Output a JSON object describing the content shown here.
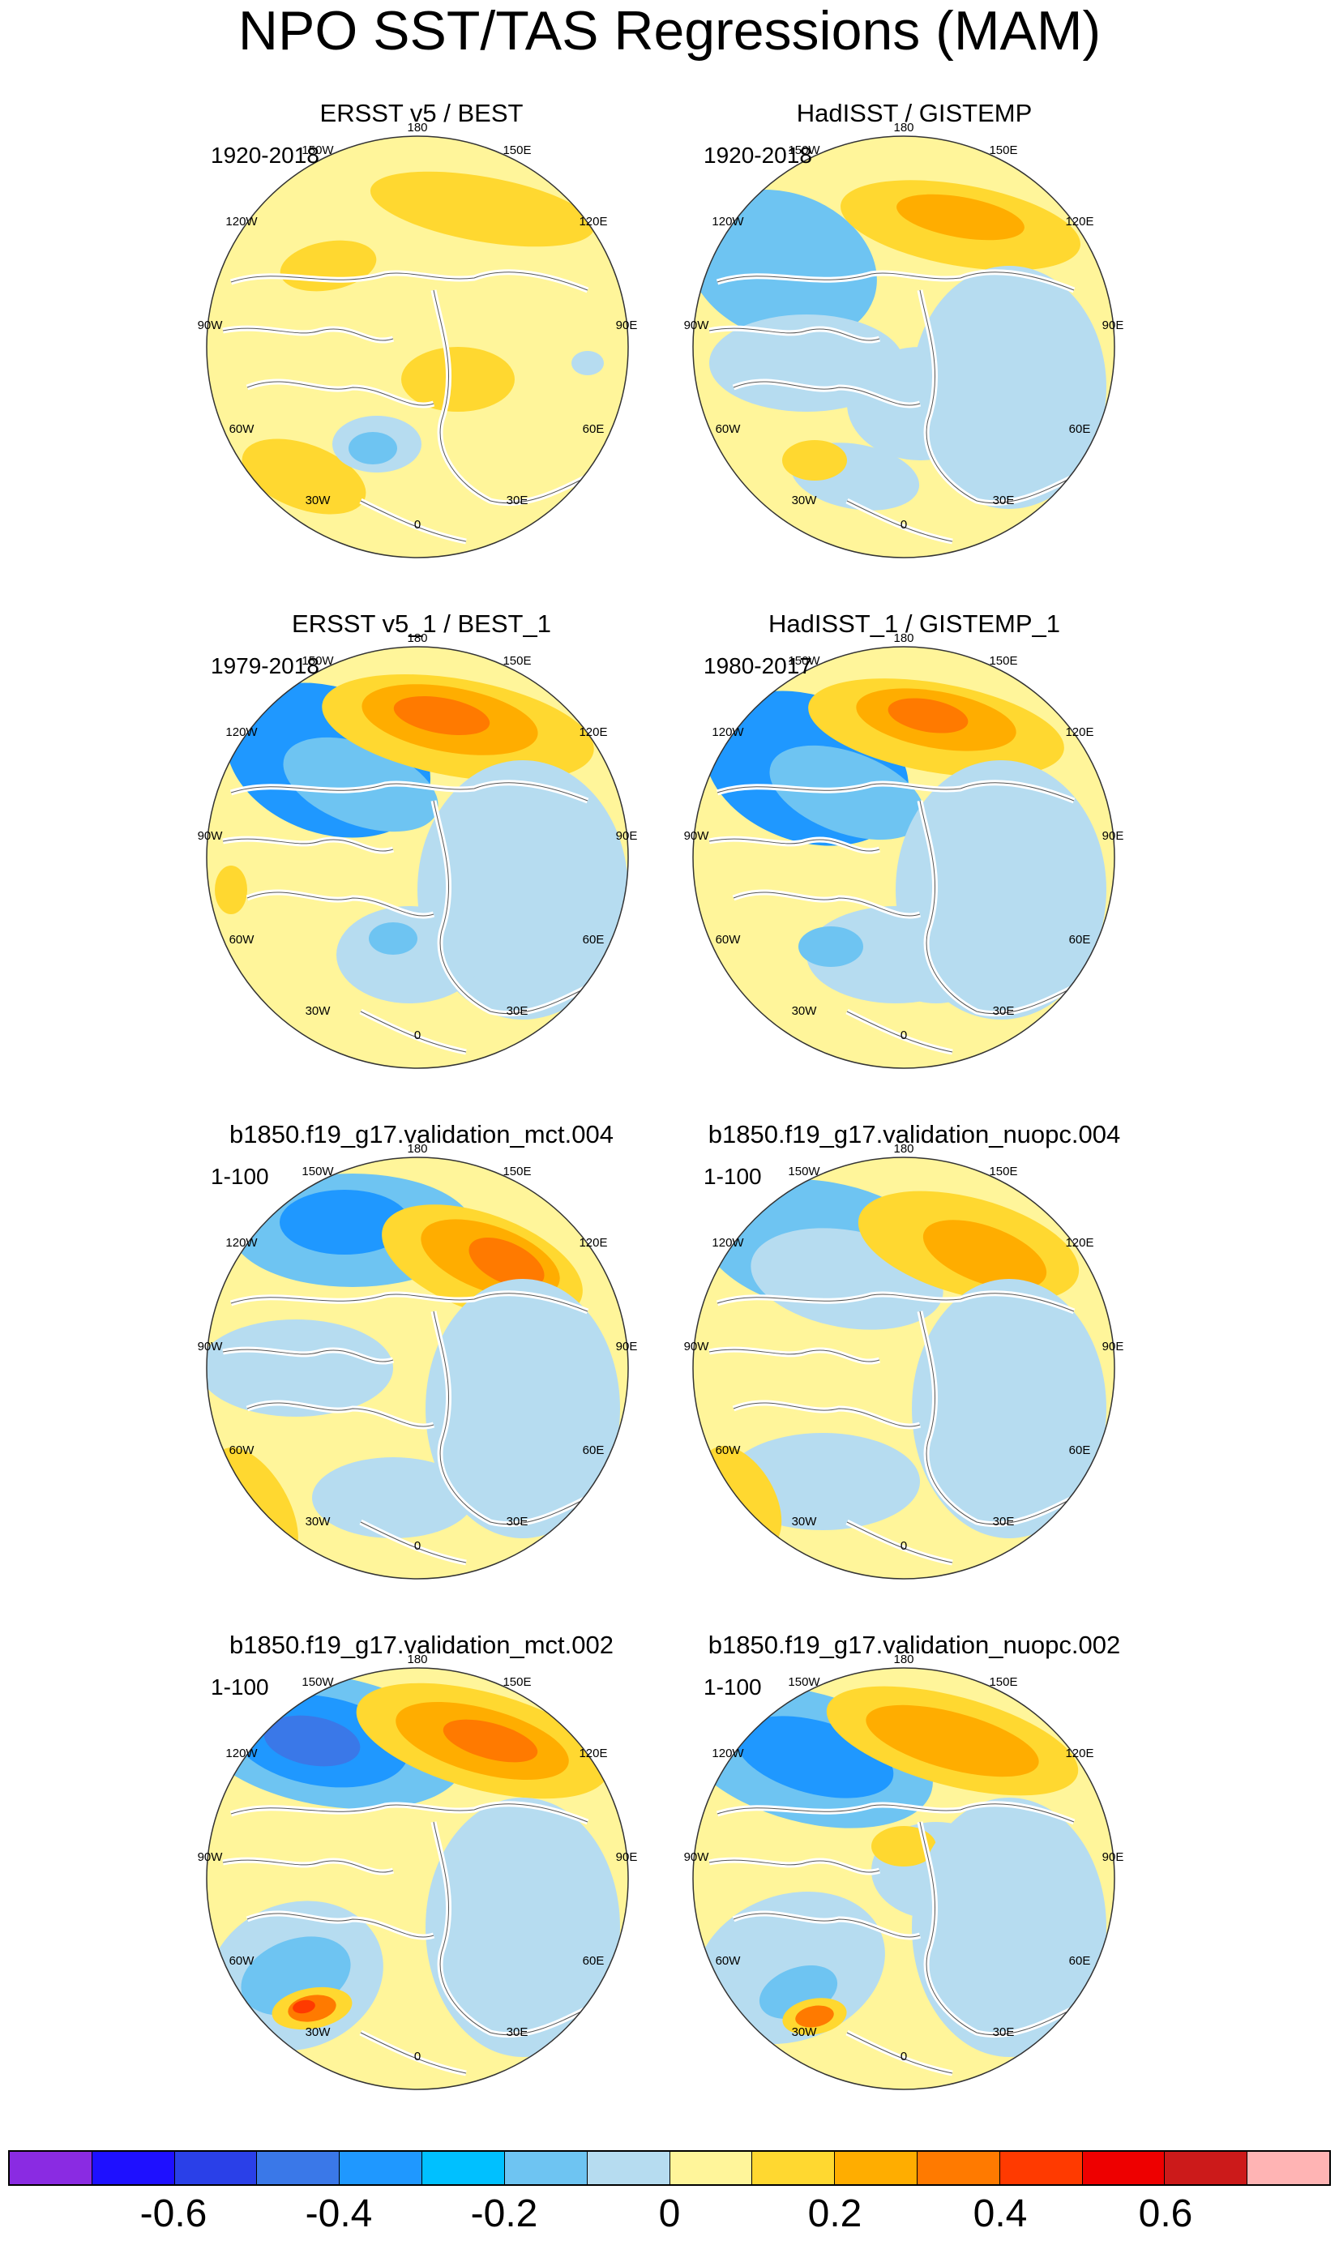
{
  "title": "NPO SST/TAS Regressions (MAM)",
  "panels": [
    {
      "title": "ERSST v5 / BEST",
      "period": "1920-2018",
      "pattern": "obs1"
    },
    {
      "title": "HadISST / GISTEMP",
      "period": "1920-2018",
      "pattern": "obs2"
    },
    {
      "title": "ERSST v5_1 / BEST_1",
      "period": "1979-2018",
      "pattern": "obs3"
    },
    {
      "title": "HadISST_1 / GISTEMP_1",
      "period": "1980-2017",
      "pattern": "obs4"
    },
    {
      "title": "b1850.f19_g17.validation_mct.004",
      "period": "1-100",
      "pattern": "mod1"
    },
    {
      "title": "b1850.f19_g17.validation_nuopc.004",
      "period": "1-100",
      "pattern": "mod2"
    },
    {
      "title": "b1850.f19_g17.validation_mct.002",
      "period": "1-100",
      "pattern": "mod3"
    },
    {
      "title": "b1850.f19_g17.validation_nuopc.002",
      "period": "1-100",
      "pattern": "mod4"
    }
  ],
  "longitude_labels": [
    "180",
    "150E",
    "120E",
    "90E",
    "60E",
    "30E",
    "0",
    "30W",
    "60W",
    "90W",
    "120W",
    "150W"
  ],
  "colorbar": {
    "colors": [
      "#8a2be2",
      "#1e10ff",
      "#2a40e8",
      "#3a78e8",
      "#1f98ff",
      "#00c0ff",
      "#6ec4f2",
      "#b6dcf0",
      "#fff59a",
      "#ffd830",
      "#ffad00",
      "#ff7a00",
      "#ff3a00",
      "#ee0000",
      "#cc1a1a",
      "#ffb4b4"
    ],
    "ticks": [
      "-0.6",
      "-0.4",
      "-0.2",
      "0",
      "0.2",
      "0.4",
      "0.6"
    ],
    "tick_values": [
      -0.6,
      -0.4,
      -0.2,
      0,
      0.2,
      0.4,
      0.6
    ],
    "min": -0.8,
    "max": 0.8
  },
  "fills": {
    "ocean_neutral": "#fff59a",
    "weak_cold": "#b6dcf0",
    "cold": "#6ec4f2",
    "colder": "#1f98ff",
    "cold_core": "#3a78e8",
    "deep_cold": "#2a40e8",
    "warm": "#ffd830",
    "warmer": "#ffad00",
    "hot": "#ff7a00",
    "very_hot": "#ff3a00",
    "coast": "#ffffff",
    "outline": "#555555"
  }
}
